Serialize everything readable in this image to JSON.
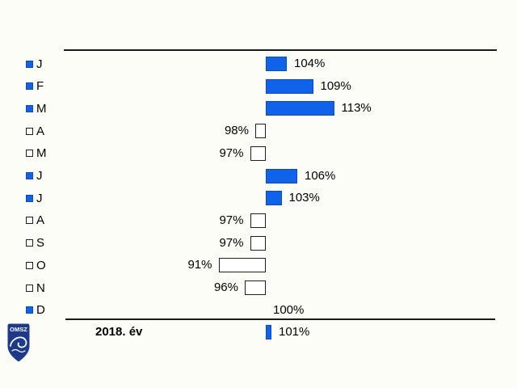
{
  "chart_data": {
    "type": "bar",
    "orientation": "horizontal",
    "baseline_value": 100,
    "unit": "%",
    "categories": [
      "J",
      "F",
      "M",
      "A",
      "M",
      "J",
      "J",
      "A",
      "S",
      "O",
      "N",
      "D"
    ],
    "values": [
      104,
      109,
      113,
      98,
      97,
      106,
      103,
      97,
      97,
      91,
      96,
      100
    ],
    "value_labels": [
      "104%",
      "109%",
      "113%",
      "98%",
      "97%",
      "106%",
      "103%",
      "97%",
      "97%",
      "91%",
      "96%",
      "100%"
    ],
    "summary": {
      "label": "2018. év",
      "value": 101,
      "value_label": "101%"
    }
  },
  "logo": {
    "text": "OMSZ"
  },
  "colors": {
    "bar_fill": "#0f62ea",
    "bar_fill_border": "#0b4bc0",
    "bar_empty_fill": "#ffffff",
    "outline": "#1f1f1f",
    "background": "#fdfdf8",
    "logo_navy": "#1d3a8a",
    "text": "#000000"
  }
}
